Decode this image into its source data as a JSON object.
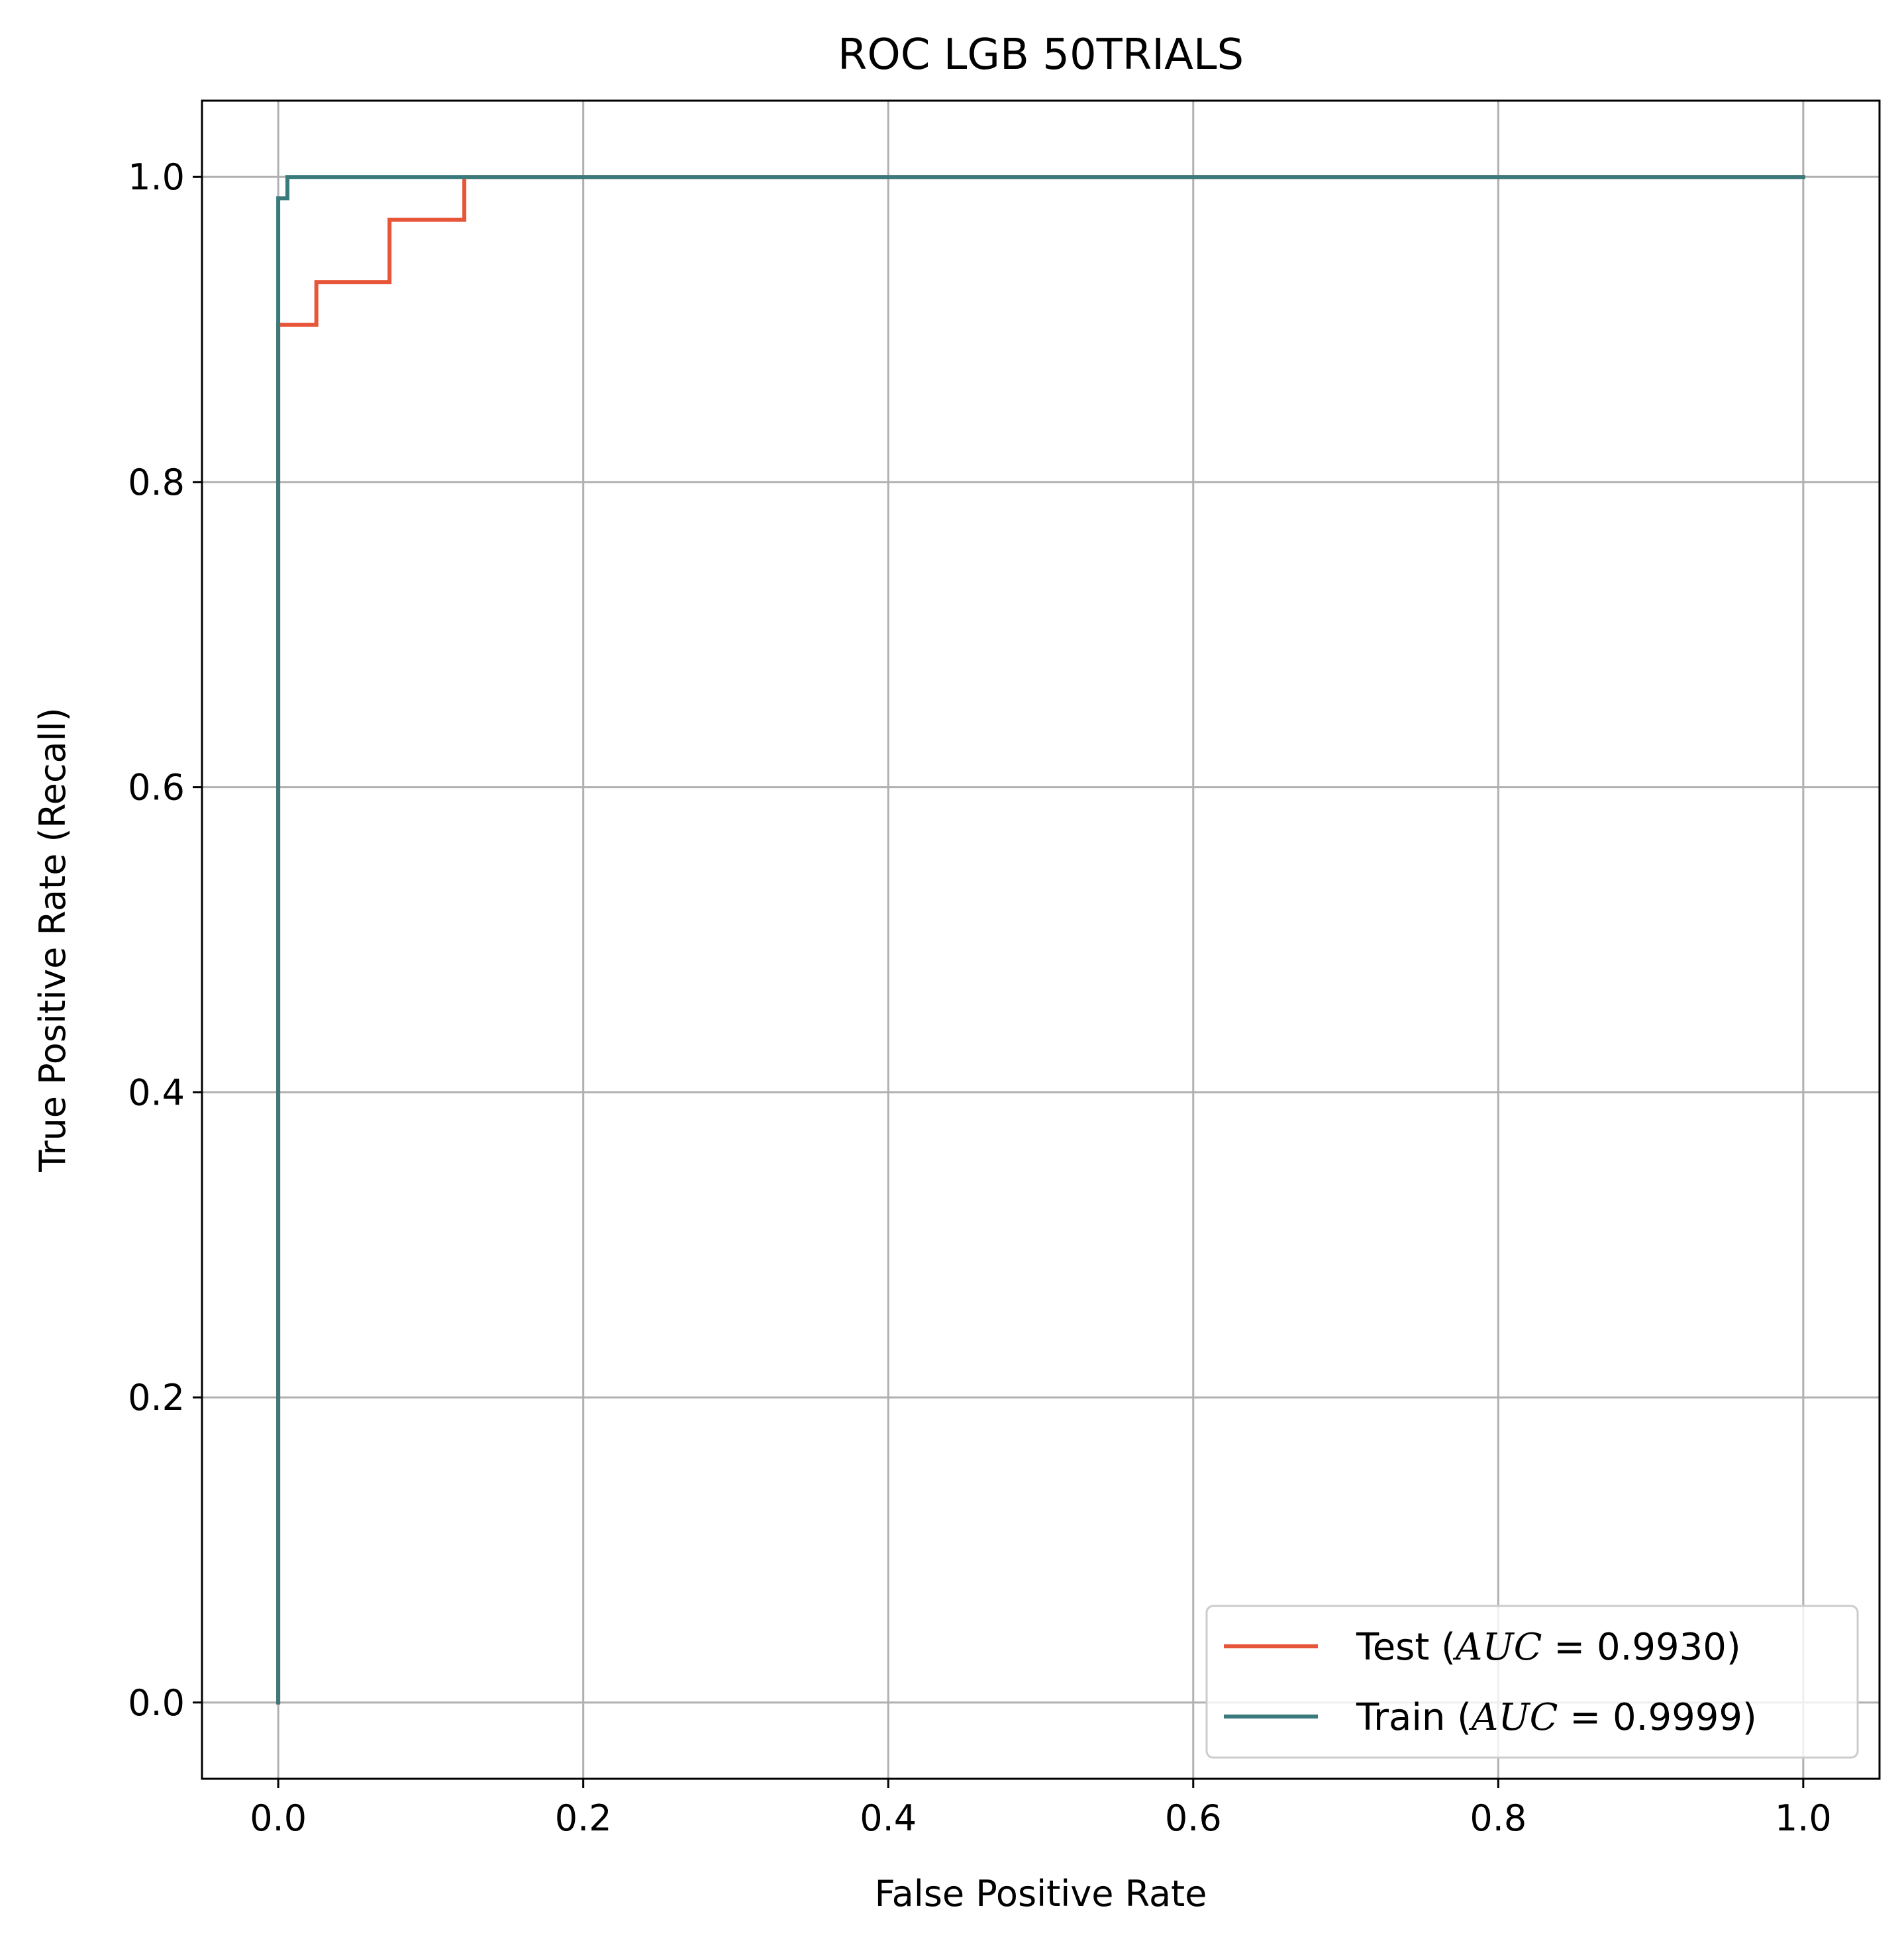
{
  "chart_data": {
    "type": "line",
    "title": "ROC LGB 50TRIALS",
    "xlabel": "False Positive Rate",
    "ylabel": "True Positive Rate (Recall)",
    "xlim": [
      -0.05,
      1.05
    ],
    "ylim": [
      -0.05,
      1.05
    ],
    "x_ticks": [
      0.0,
      0.2,
      0.4,
      0.6,
      0.8,
      1.0
    ],
    "y_ticks": [
      0.0,
      0.2,
      0.4,
      0.6,
      0.8,
      1.0
    ],
    "x_tick_labels": [
      "0.0",
      "0.2",
      "0.4",
      "0.6",
      "0.8",
      "1.0"
    ],
    "y_tick_labels": [
      "0.0",
      "0.2",
      "0.4",
      "0.6",
      "0.8",
      "1.0"
    ],
    "grid": true,
    "legend_position": "bottom-right",
    "series": [
      {
        "name": "Test (AUC = 0.9930)",
        "legend_prefix": "Test (",
        "legend_math": "AUC",
        "legend_suffix": " = 0.9930)",
        "color": "#e8563a",
        "x": [
          0.0,
          0.0,
          0.025,
          0.025,
          0.073,
          0.073,
          0.122,
          0.122,
          1.0
        ],
        "y": [
          0.0,
          0.903,
          0.903,
          0.931,
          0.931,
          0.972,
          0.972,
          1.0,
          1.0
        ]
      },
      {
        "name": "Train (AUC = 0.9999)",
        "legend_prefix": "Train (",
        "legend_math": "AUC",
        "legend_suffix": " = 0.9999)",
        "color": "#3a7a7c",
        "x": [
          0.0,
          0.0,
          0.006,
          0.006,
          1.0
        ],
        "y": [
          0.0,
          0.986,
          0.986,
          1.0,
          1.0
        ]
      }
    ]
  }
}
